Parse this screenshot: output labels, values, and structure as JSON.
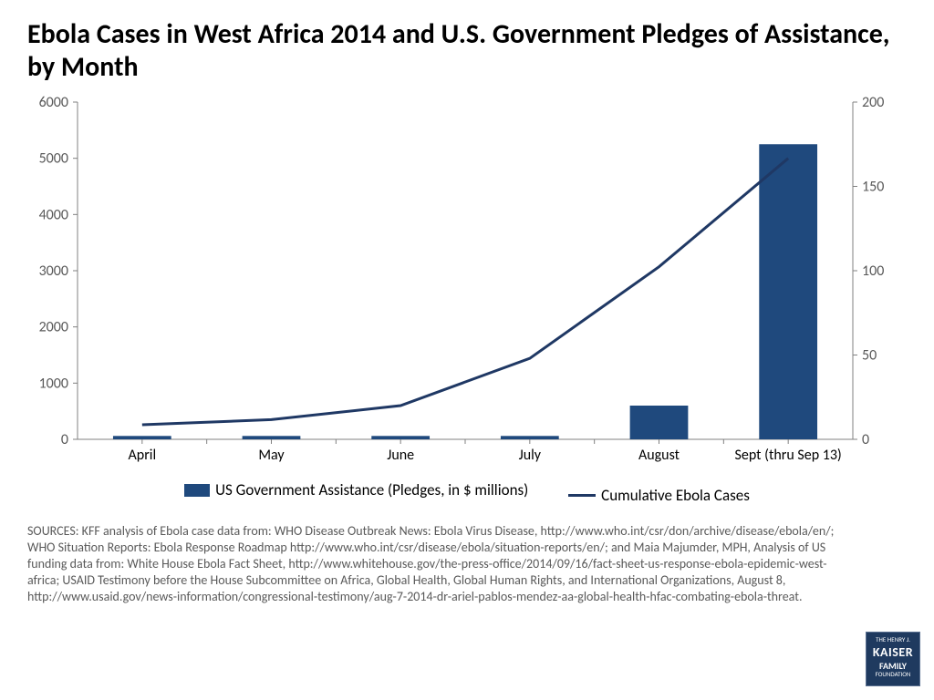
{
  "title": "Ebola Cases in West Africa 2014 and U.S. Government Pledges of Assistance, by Month",
  "chart": {
    "type": "bar+line",
    "categories": [
      "April",
      "May",
      "June",
      "July",
      "August",
      "Sept (thru Sep 13)"
    ],
    "bar_series": {
      "label": "US Government Assistance (Pledges, in $ millions)",
      "values": [
        2,
        2,
        2,
        2,
        20,
        175
      ],
      "color": "#1f497d"
    },
    "line_series": {
      "label": "Cumulative Ebola Cases",
      "values": [
        260,
        350,
        600,
        1440,
        3070,
        5000
      ],
      "color": "#1f3864",
      "width": 3
    },
    "left_axis": {
      "min": 0,
      "max": 6000,
      "step": 1000,
      "tick_color": "#595959",
      "font_size": 16
    },
    "right_axis": {
      "min": 0,
      "max": 200,
      "step": 50,
      "tick_color": "#595959",
      "font_size": 16
    },
    "plot": {
      "bg": "#ffffff",
      "axis_line_color": "#808080",
      "tick_mark_color": "#808080",
      "category_font_size": 16,
      "category_color": "#000000"
    },
    "bar_width_ratio": 0.45
  },
  "legend": {
    "bar_label": "US Government Assistance (Pledges, in $ millions)",
    "line_label": "Cumulative Ebola Cases"
  },
  "sources": "SOURCES: KFF analysis of Ebola case data from: WHO Disease Outbreak News: Ebola Virus Disease, http://www.who.int/csr/don/archive/disease/ebola/en/; WHO Situation Reports: Ebola Response Roadmap http://www.who.int/csr/disease/ebola/situation-reports/en/; and Maia Majumder, MPH, Analysis of US funding data from: White House Ebola Fact Sheet, http://www.whitehouse.gov/the-press-office/2014/09/16/fact-sheet-us-response-ebola-epidemic-west-africa; USAID Testimony before the House Subcommittee on Africa, Global Health, Global Human Rights, and International Organizations, August 8, http://www.usaid.gov/news-information/congressional-testimony/aug-7-2014-dr-ariel-pablos-mendez-aa-global-health-hfac-combating-ebola-threat.",
  "logo": {
    "top": "THE HENRY J.",
    "main": "KAISER",
    "sub": "FAMILY",
    "bottom": "FOUNDATION"
  }
}
